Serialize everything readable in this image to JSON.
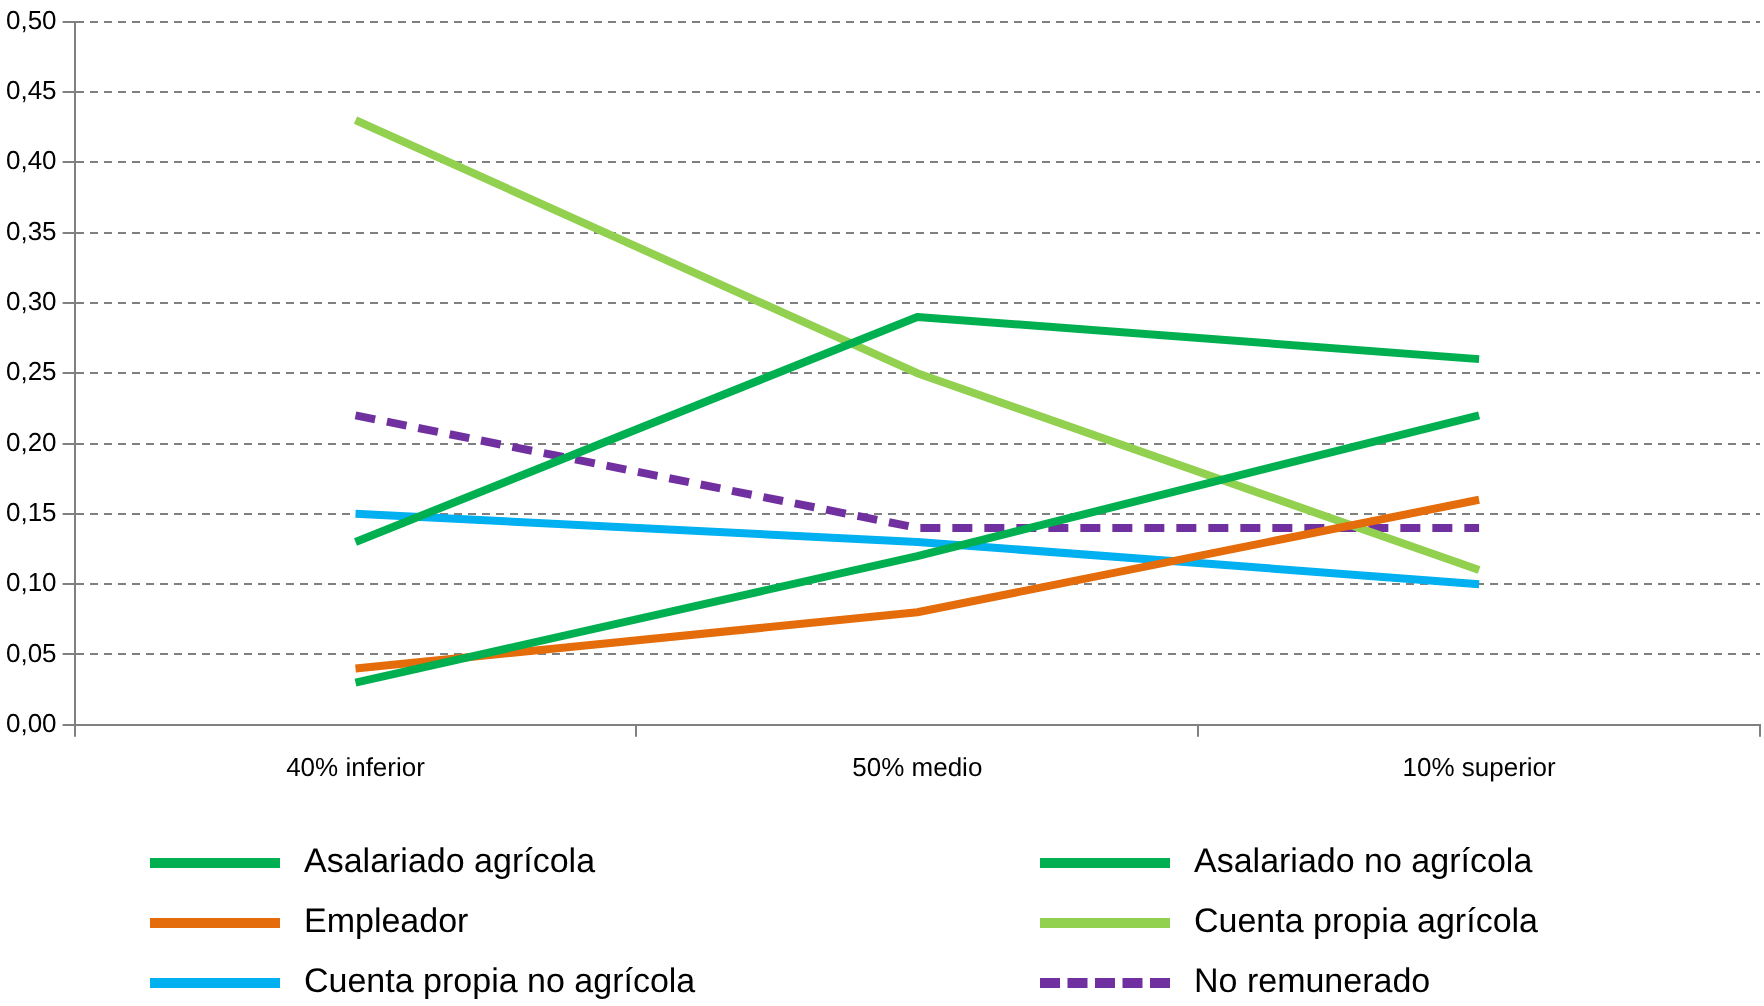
{
  "chart_data": {
    "type": "line",
    "categories": [
      "40% inferior",
      "50% medio",
      "10% superior"
    ],
    "series": [
      {
        "name": "Asalariado agrícola",
        "color": "#00b050",
        "values": [
          0.13,
          0.29,
          0.26
        ]
      },
      {
        "name": "Asalariado no agrícola",
        "color": "#00b050",
        "values": [
          0.03,
          0.12,
          0.22
        ]
      },
      {
        "name": "Empleador",
        "color": "#e46c0a",
        "values": [
          0.04,
          0.08,
          0.16
        ]
      },
      {
        "name": "Cuenta propia agrícola",
        "color": "#92d050",
        "values": [
          0.43,
          0.25,
          0.11
        ]
      },
      {
        "name": "Cuenta propia no agrícola",
        "color": "#00b0f0",
        "values": [
          0.15,
          0.13,
          0.1
        ]
      },
      {
        "name": "No remunerado",
        "color": "#7030a0",
        "values": [
          0.22,
          0.14,
          0.14
        ],
        "line_style": "dashed"
      }
    ],
    "ylim": [
      0,
      0.5
    ],
    "yticks": [
      {
        "value": 0,
        "label": "0,00"
      },
      {
        "value": 0.05,
        "label": "0,05"
      },
      {
        "value": 0.1,
        "label": "0,10"
      },
      {
        "value": 0.15,
        "label": "0,15"
      },
      {
        "value": 0.2,
        "label": "0,20"
      },
      {
        "value": 0.25,
        "label": "0,25"
      },
      {
        "value": 0.3,
        "label": "0,30"
      },
      {
        "value": 0.35,
        "label": "0,35"
      },
      {
        "value": 0.4,
        "label": "0,40"
      },
      {
        "value": 0.45,
        "label": "0,45"
      },
      {
        "value": 0.5,
        "label": "0,50"
      }
    ],
    "grid": "y",
    "legend": "bottom",
    "marker": "none",
    "line_style": "solid"
  }
}
